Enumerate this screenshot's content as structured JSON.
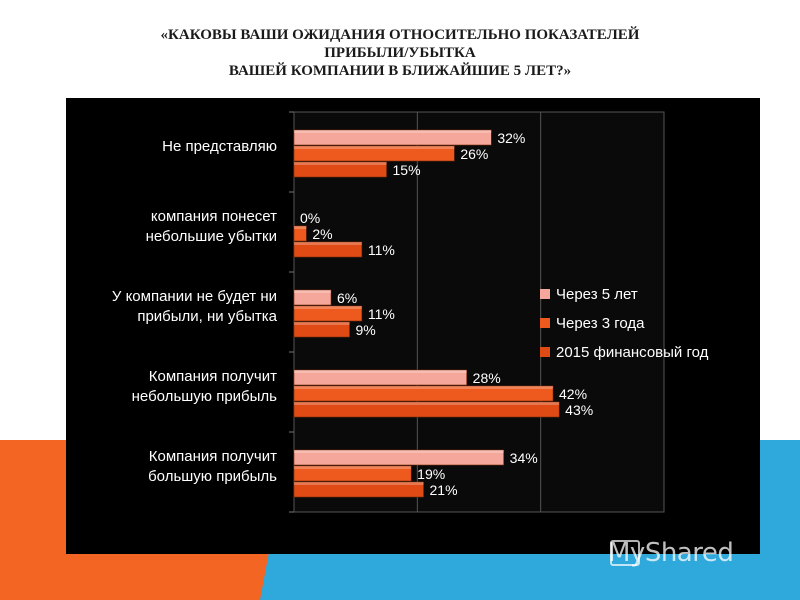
{
  "title_lines": [
    "«КАКОВЫ ВАШИ ОЖИДАНИЯ ОТНОСИТЕЛЬНО ПОКАЗАТЕЛЕЙ",
    "ПРИБЫЛИ/УБЫТКА",
    "ВАШЕЙ КОМПАНИИ В БЛИЖАЙШИЕ 5 ЛЕТ?»"
  ],
  "watermark": "MyShared",
  "colors": {
    "series": [
      "#f4a79a",
      "#ee5a1e",
      "#e04a14"
    ],
    "background": "#000000",
    "band_orange": "#f26522",
    "band_blue": "#2fa8dc"
  },
  "chart_data": {
    "type": "bar",
    "orientation": "horizontal",
    "categories": [
      [
        "Не представляю"
      ],
      [
        "компания понесет",
        "небольшие убытки"
      ],
      [
        "У компании не будет ни",
        "прибыли, ни убытка"
      ],
      [
        "Компания получит",
        "небольшую прибыль"
      ],
      [
        "Компания получит",
        "большую прибыль"
      ]
    ],
    "series": [
      {
        "name": "Через 5 лет",
        "values": [
          32,
          0,
          6,
          28,
          34
        ]
      },
      {
        "name": "Через 3 года",
        "values": [
          26,
          2,
          11,
          42,
          19
        ]
      },
      {
        "name": "2015 финансовый год",
        "values": [
          15,
          11,
          9,
          43,
          21
        ]
      }
    ],
    "value_suffix": "%",
    "xlim": [
      0,
      60
    ],
    "grid": true,
    "legend_position": "right"
  }
}
